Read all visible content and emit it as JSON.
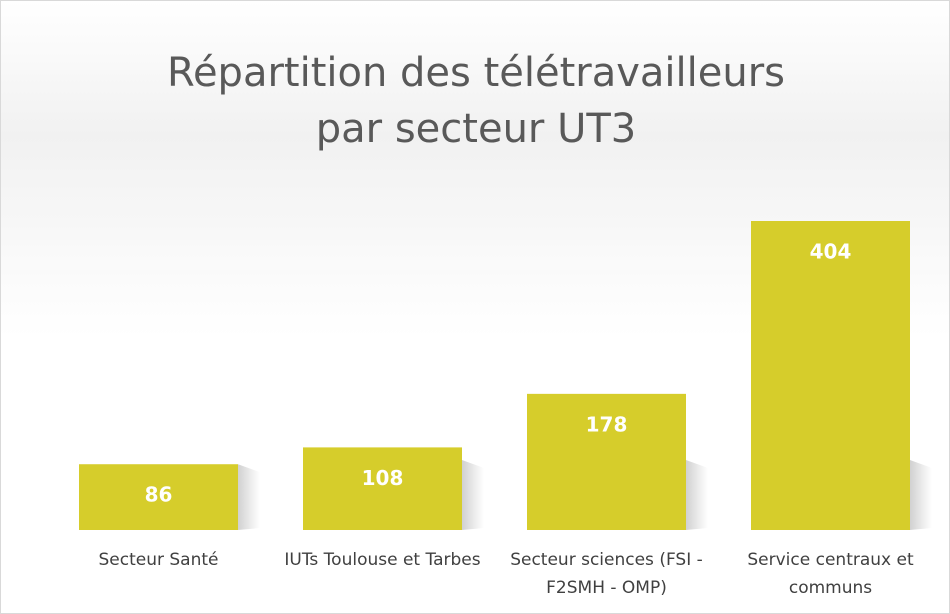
{
  "chart_data": {
    "type": "bar",
    "title": "Répartition des télétravailleurs par secteur UT3",
    "categories": [
      "Secteur Santé",
      "IUTs Toulouse et Tarbes",
      "Secteur sciences (FSI - F2SMH - OMP)",
      "Service centraux et communs"
    ],
    "values": [
      86,
      108,
      178,
      404
    ],
    "color": "#d6cd2b"
  }
}
